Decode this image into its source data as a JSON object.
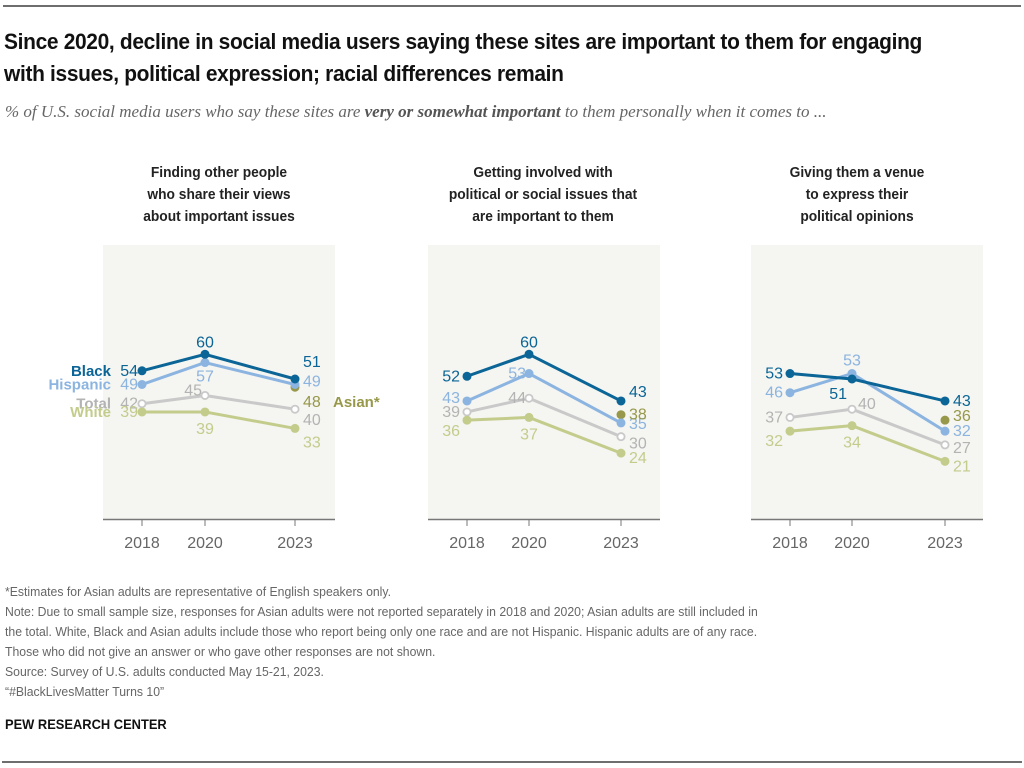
{
  "title": "Since 2020, decline in social media users saying these sites are important to them for engaging with issues, political expression; racial differences remain",
  "subtitle": {
    "before": "% of U.S. social media users who say these sites are ",
    "emphasis": "very or somewhat important",
    "after": " to them personally when it comes to ..."
  },
  "colors": {
    "Black": "#0b6596",
    "Hispanic": "#8cb4e0",
    "Total": "#c9c9c9",
    "White": "#c4cc8c",
    "Asian": "#97984a",
    "panel_bg": "#f5f5f1",
    "axis": "#777777",
    "tick_label": "#666666"
  },
  "chart_data": [
    {
      "type": "line",
      "title": "Finding other people who share their views about important issues",
      "title_lines": [
        "Finding other people",
        "who share their views",
        "about important issues"
      ],
      "x": [
        "2018",
        "2020",
        "2023"
      ],
      "ylim": [
        0,
        100
      ],
      "grid": false,
      "series": [
        {
          "name": "Black",
          "values": [
            54,
            60,
            51
          ]
        },
        {
          "name": "Hispanic",
          "values": [
            49,
            57,
            49
          ]
        },
        {
          "name": "Total",
          "values": [
            42,
            45,
            40
          ]
        },
        {
          "name": "White",
          "values": [
            39,
            39,
            33
          ]
        },
        {
          "name": "Asian*",
          "values": [
            null,
            null,
            48
          ]
        }
      ],
      "series_labels_shown": true
    },
    {
      "type": "line",
      "title": "Getting involved with political or social issues that are important to them",
      "title_lines": [
        "Getting involved with",
        "political or social issues that",
        "are important to them"
      ],
      "x": [
        "2018",
        "2020",
        "2023"
      ],
      "ylim": [
        0,
        100
      ],
      "grid": false,
      "series": [
        {
          "name": "Black",
          "values": [
            52,
            60,
            43
          ]
        },
        {
          "name": "Hispanic",
          "values": [
            43,
            53,
            35
          ]
        },
        {
          "name": "Total",
          "values": [
            39,
            44,
            30
          ]
        },
        {
          "name": "White",
          "values": [
            36,
            37,
            24
          ]
        },
        {
          "name": "Asian*",
          "values": [
            null,
            null,
            38
          ]
        }
      ],
      "series_labels_shown": false
    },
    {
      "type": "line",
      "title": "Giving them a venue to express their political opinions",
      "title_lines": [
        "Giving them a venue",
        "to express their",
        "political opinions"
      ],
      "x": [
        "2018",
        "2020",
        "2023"
      ],
      "ylim": [
        0,
        100
      ],
      "grid": false,
      "series": [
        {
          "name": "Black",
          "values": [
            53,
            51,
            43
          ]
        },
        {
          "name": "Hispanic",
          "values": [
            46,
            53,
            32
          ]
        },
        {
          "name": "Total",
          "values": [
            37,
            40,
            27
          ]
        },
        {
          "name": "White",
          "values": [
            32,
            34,
            21
          ]
        },
        {
          "name": "Asian*",
          "values": [
            null,
            null,
            36
          ]
        }
      ],
      "series_labels_shown": false
    }
  ],
  "notes": [
    "*Estimates for Asian adults are representative of English speakers only.",
    "Note: Due to small sample size, responses for Asian adults were not reported separately in 2018 and 2020; Asian adults are still included in",
    "the total. White, Black and Asian adults include those who report being only one race and are not Hispanic. Hispanic adults are of any race.",
    "Those who did not give an answer or who gave other responses are not shown.",
    "Source: Survey of U.S. adults conducted May 15-21, 2023.",
    "“#BlackLivesMatter Turns 10”"
  ],
  "brand": "PEW RESEARCH CENTER"
}
